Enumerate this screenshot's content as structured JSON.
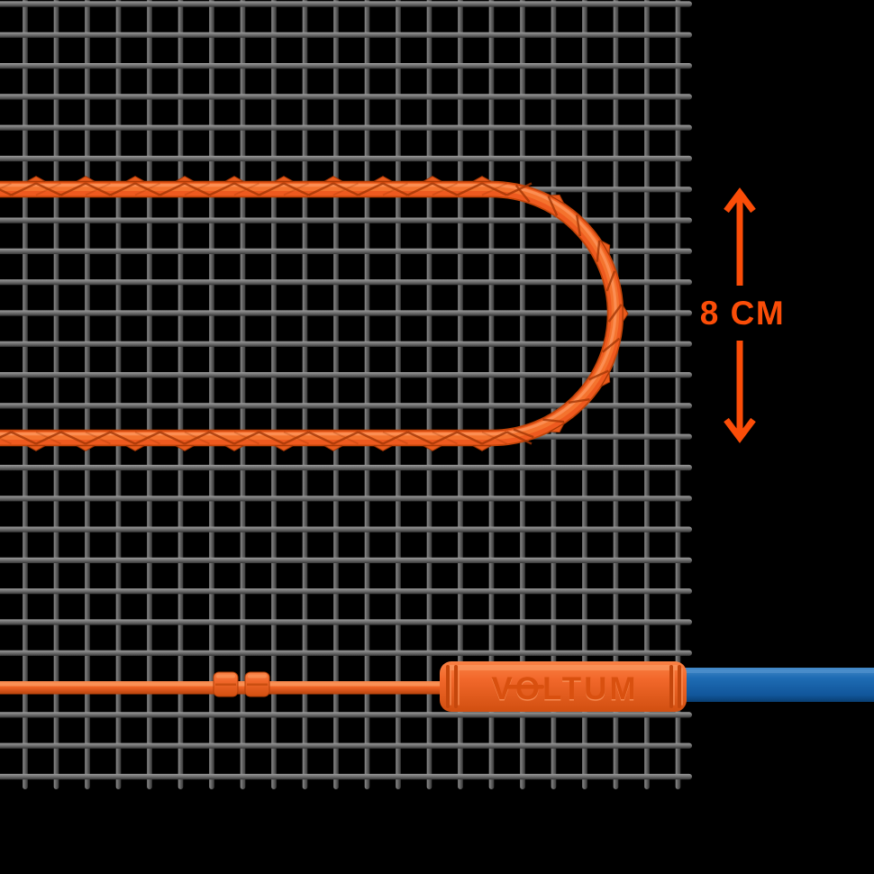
{
  "diagram": {
    "dimension": {
      "label": "8 CM"
    },
    "connector": {
      "brand": "VOLTUM"
    },
    "colors": {
      "background": "#000000",
      "accent_orange": "#FB4D08",
      "cable_orange": "#EE5A1F",
      "cable_shadow": "#C14409",
      "cable_highlight": "#F98A52",
      "connector_orange": "#F2682B",
      "connector_engraving": "#D9500F",
      "mesh_gray": "#6B6B6B",
      "cord_blue": "#1565AE"
    }
  }
}
